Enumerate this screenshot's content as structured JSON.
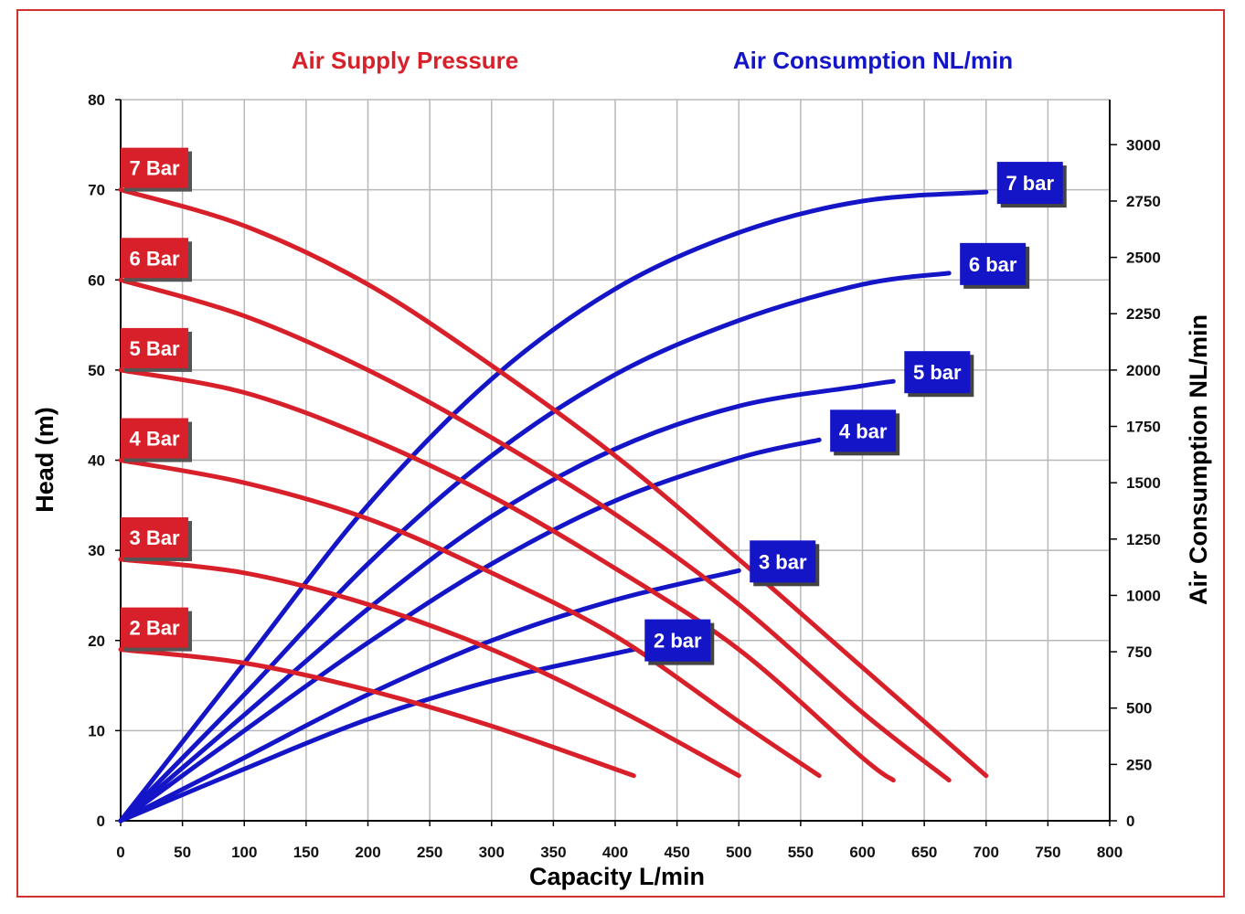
{
  "colors": {
    "pressure": "#d8202a",
    "consumption": "#1515c8",
    "grid": "#b8b8b8",
    "frame": "#d2322d"
  },
  "chart_data": {
    "type": "line",
    "title_left": "Air Supply Pressure",
    "title_right": "Air Consumption NL/min",
    "xlabel": "Capacity L/min",
    "ylabel": "Head (m)",
    "y2label": "Air Consumption NL/min",
    "xlim": [
      0,
      800
    ],
    "ylim": [
      0,
      80
    ],
    "y2lim": [
      0,
      3200
    ],
    "xticks": [
      "0",
      "50",
      "100",
      "150",
      "200",
      "250",
      "300",
      "350",
      "400",
      "450",
      "500",
      "550",
      "600",
      "650",
      "700",
      "750",
      "800"
    ],
    "yticks": [
      "0",
      "10",
      "20",
      "30",
      "40",
      "50",
      "60",
      "70",
      "80"
    ],
    "y2ticks": [
      "0",
      "250",
      "500",
      "750",
      "1000",
      "1250",
      "1500",
      "1750",
      "2000",
      "2250",
      "2500",
      "2750",
      "3000"
    ],
    "pressure_series": [
      {
        "name": "7 Bar",
        "x": [
          0,
          100,
          200,
          300,
          400,
          500,
          600,
          700
        ],
        "y": [
          70,
          66,
          59.5,
          50.5,
          40.5,
          29,
          17,
          5
        ]
      },
      {
        "name": "6 Bar",
        "x": [
          0,
          100,
          200,
          300,
          400,
          500,
          600,
          670
        ],
        "y": [
          60,
          56,
          50,
          42.5,
          34,
          24,
          12,
          4.5
        ]
      },
      {
        "name": "5 Bar",
        "x": [
          0,
          100,
          200,
          300,
          400,
          500,
          600,
          625
        ],
        "y": [
          50,
          47.5,
          42.5,
          36,
          28,
          19,
          7,
          4.5
        ]
      },
      {
        "name": "4 Bar",
        "x": [
          0,
          100,
          200,
          300,
          400,
          500,
          565
        ],
        "y": [
          40,
          37.5,
          33.5,
          27.5,
          20.5,
          11,
          5
        ]
      },
      {
        "name": "3 Bar",
        "x": [
          0,
          100,
          200,
          300,
          400,
          500
        ],
        "y": [
          29,
          27.5,
          24,
          19,
          12.5,
          5
        ]
      },
      {
        "name": "2 Bar",
        "x": [
          0,
          100,
          200,
          300,
          415
        ],
        "y": [
          19,
          17.5,
          14.5,
          10.5,
          5
        ]
      }
    ],
    "consumption_series": [
      {
        "name": "7 bar",
        "x": [
          0,
          100,
          200,
          300,
          400,
          500,
          600,
          700
        ],
        "y": [
          0,
          700,
          1400,
          1960,
          2360,
          2610,
          2750,
          2790
        ]
      },
      {
        "name": "6 bar",
        "x": [
          0,
          100,
          200,
          300,
          400,
          500,
          600,
          670
        ],
        "y": [
          0,
          560,
          1140,
          1620,
          1980,
          2220,
          2380,
          2430
        ]
      },
      {
        "name": "5 bar",
        "x": [
          0,
          100,
          200,
          300,
          400,
          500,
          600,
          625
        ],
        "y": [
          0,
          470,
          940,
          1350,
          1650,
          1840,
          1930,
          1950
        ]
      },
      {
        "name": "4 bar",
        "x": [
          0,
          100,
          200,
          300,
          400,
          500,
          565
        ],
        "y": [
          0,
          400,
          790,
          1140,
          1420,
          1610,
          1690
        ]
      },
      {
        "name": "3 bar",
        "x": [
          0,
          100,
          200,
          300,
          400,
          500
        ],
        "y": [
          0,
          280,
          560,
          800,
          980,
          1110
        ]
      },
      {
        "name": "2 bar",
        "x": [
          0,
          100,
          200,
          300,
          415
        ],
        "y": [
          0,
          230,
          450,
          620,
          760
        ]
      }
    ]
  }
}
